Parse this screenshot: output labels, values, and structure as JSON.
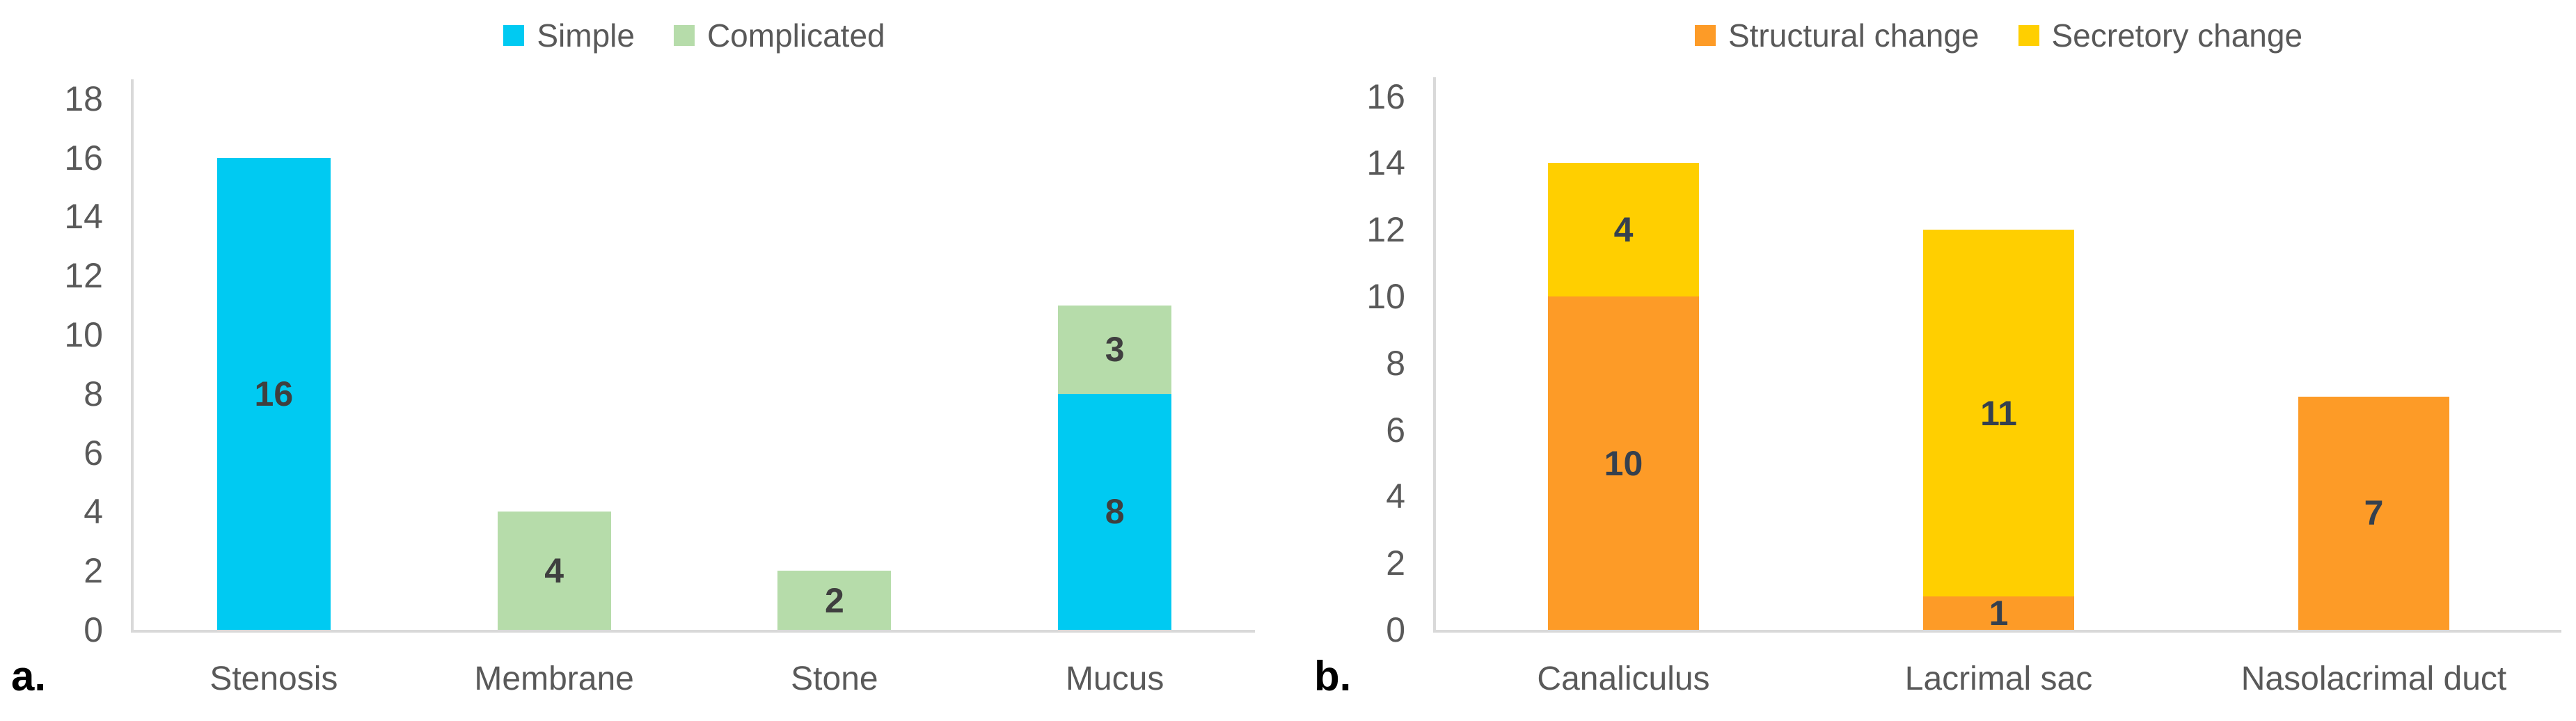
{
  "figure": {
    "panel_a": {
      "corner_label": "a."
    },
    "panel_b": {
      "corner_label": "b."
    }
  },
  "colors": {
    "simple": "#00caf2",
    "complicated": "#b6dcaa",
    "structural_change": "#fd9b27",
    "secretory_change": "#ffcf00",
    "axis_line": "#d9d9d9",
    "tick_text": "#595959",
    "legend_text": "#595959",
    "value_label_a": "#3f3f3f",
    "value_label_b": "#35404e",
    "corner_label": "#000000"
  },
  "chart_data": [
    {
      "type": "bar",
      "stacked": true,
      "panel": "a",
      "title": "",
      "xlabel": "",
      "ylabel": "",
      "categories": [
        "Stenosis",
        "Membrane",
        "Stone",
        "Mucus"
      ],
      "series": [
        {
          "name": "Simple",
          "color": "#00caf2",
          "values": [
            16,
            0,
            0,
            8
          ]
        },
        {
          "name": "Complicated",
          "color": "#b6dcaa",
          "values": [
            0,
            4,
            2,
            3
          ]
        }
      ],
      "totals": [
        16,
        4,
        2,
        11
      ],
      "ylim": [
        0,
        18
      ],
      "yticks": [
        0,
        2,
        4,
        6,
        8,
        10,
        12,
        14,
        16,
        18
      ],
      "grid": false,
      "legend_position": "top",
      "value_labels": "center-of-segment",
      "value_label_color": "#3f3f3f"
    },
    {
      "type": "bar",
      "stacked": true,
      "panel": "b",
      "title": "",
      "xlabel": "",
      "ylabel": "",
      "categories": [
        "Canaliculus",
        "Lacrimal sac",
        "Nasolacrimal duct"
      ],
      "series": [
        {
          "name": "Structural change",
          "color": "#fd9b27",
          "values": [
            10,
            1,
            7
          ]
        },
        {
          "name": "Secretory change",
          "color": "#ffcf00",
          "values": [
            4,
            11,
            0
          ]
        }
      ],
      "totals": [
        14,
        12,
        7
      ],
      "ylim": [
        0,
        16
      ],
      "yticks": [
        0,
        2,
        4,
        6,
        8,
        10,
        12,
        14,
        16
      ],
      "grid": false,
      "legend_position": "top",
      "value_labels": "center-of-segment",
      "value_label_color": "#35404e"
    }
  ]
}
